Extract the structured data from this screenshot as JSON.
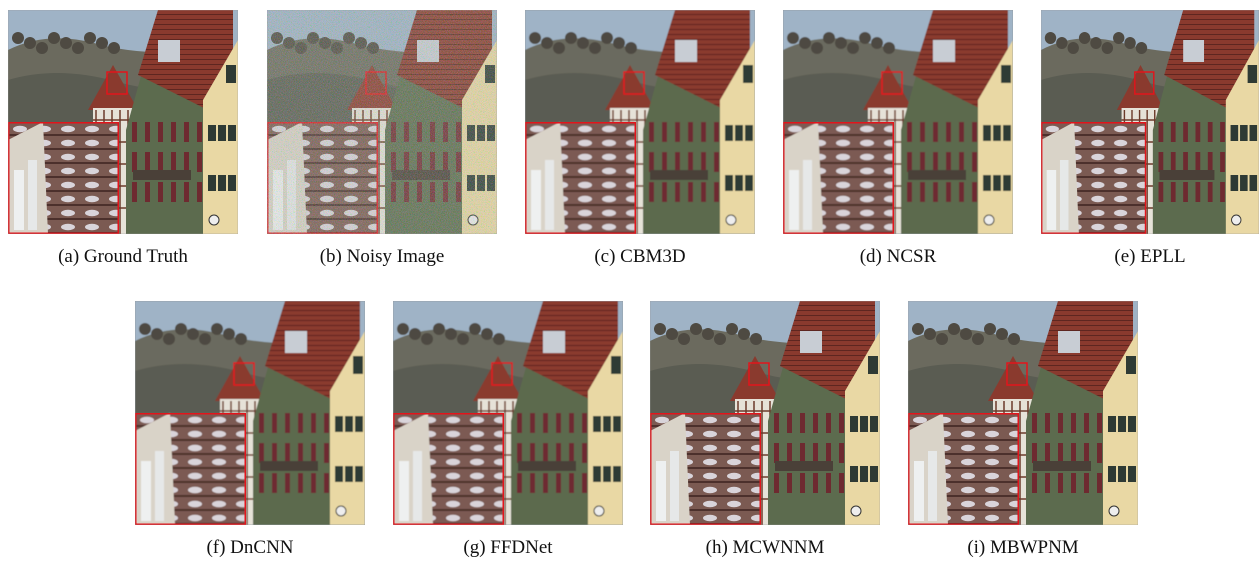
{
  "figure": {
    "panels": [
      {
        "id": "a",
        "caption": "(a) Ground Truth",
        "variant": "clean"
      },
      {
        "id": "b",
        "caption": "(b) Noisy Image",
        "variant": "noisy"
      },
      {
        "id": "c",
        "caption": "(c) CBM3D",
        "variant": "smooth"
      },
      {
        "id": "d",
        "caption": "(d) NCSR",
        "variant": "blurry"
      },
      {
        "id": "e",
        "caption": "(e) EPLL",
        "variant": "clean"
      },
      {
        "id": "f",
        "caption": "(f) DnCNN",
        "variant": "smooth"
      },
      {
        "id": "g",
        "caption": "(g) FFDNet",
        "variant": "smooth"
      },
      {
        "id": "h",
        "caption": "(h) MCWNNM",
        "variant": "clean"
      },
      {
        "id": "i",
        "caption": "(i) MBWPNM",
        "variant": "clean"
      }
    ],
    "colors": {
      "sky": "#9fb3c6",
      "hill": "#6b6a5e",
      "roof_red": "#8a3a2e",
      "wall_green": "#5c6b4e",
      "wall_yellow": "#e9d8a4",
      "timber_white": "#e6e2d8",
      "zoom_box": "#e3141b"
    }
  }
}
